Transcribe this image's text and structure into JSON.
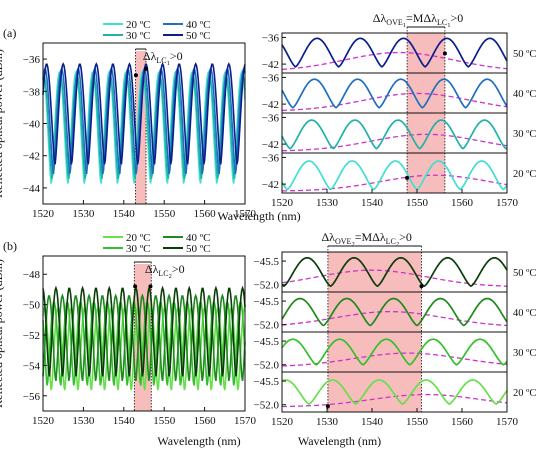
{
  "chart_data": [
    {
      "type": "line",
      "panel_label": "(a)",
      "xlabel": "",
      "ylabel": "Reflected optical power (dBm)",
      "xlim": [
        1520,
        1570
      ],
      "ylim": [
        -45,
        -35
      ],
      "xticks": [
        "1520",
        "1530",
        "1540",
        "1550",
        "1560",
        "1570"
      ],
      "yticks": [
        "-36",
        "-38",
        "-40",
        "-42",
        "-44"
      ],
      "legend": {
        "placement": "top",
        "columns": 2,
        "entries": [
          "20 ºC",
          "40 ºC",
          "30 ºC",
          "50 ºC"
        ]
      },
      "series": [
        {
          "name": "20 ºC",
          "color": "#40e0d0",
          "period_nm": 4.1,
          "peak_x": 1544.6,
          "min_db": -43.8,
          "max_db": -36.8
        },
        {
          "name": "30 ºC",
          "color": "#20b2aa",
          "period_nm": 4.1,
          "peak_x": 1544.8,
          "min_db": -43.5,
          "max_db": -37.0
        },
        {
          "name": "40 ºC",
          "color": "#1e6fc0",
          "period_nm": 4.1,
          "peak_x": 1545.1,
          "min_db": -43.2,
          "max_db": -36.6
        },
        {
          "name": "50 ºC",
          "color": "#0a1e8c",
          "period_nm": 4.1,
          "peak_x": 1545.5,
          "min_db": -42.6,
          "max_db": -36.3
        }
      ],
      "shaded_band": {
        "x": [
          1542.9,
          1545.5
        ],
        "color": "#f4a6a6"
      },
      "annotation": {
        "main": "Δλ",
        "sub": "LC",
        "subsub": "1",
        "suffix": ">0"
      },
      "marker_points": [
        {
          "x": 1543.0,
          "y": -37.0
        },
        {
          "x": 1545.5,
          "y": -36.6
        }
      ]
    },
    {
      "type": "line",
      "panel_label": "",
      "stacked": true,
      "xlabel": "",
      "ylabel": "",
      "xlim": [
        1520,
        1570
      ],
      "xticks": [
        "1520",
        "1530",
        "1540",
        "1550",
        "1560",
        "1570"
      ],
      "shaded_band": {
        "x": [
          1547.8,
          1556.2
        ],
        "color": "#f4a6a6"
      },
      "annotation": {
        "main": "Δλ",
        "sub": "OVE",
        "subsub": "1",
        "middle": "=MΔλ",
        "sub2": "LC",
        "subsub2": "1",
        "suffix": ">0"
      },
      "rows": [
        {
          "temp": "50 ºC",
          "color": "#0a1e8c",
          "yticks": [
            "-36",
            "-42"
          ],
          "ylim": [
            -44,
            -35
          ],
          "period_nm": 9.6,
          "peak_x": 1547.0,
          "min_db": -42.6,
          "max_db": -36.2,
          "env_peak_x": 1546.0,
          "env_max": -39.4,
          "env_min": -43.6,
          "marker": {
            "x": 1556.2,
            "y": -39.6
          }
        },
        {
          "temp": "40 ºC",
          "color": "#1e6fc0",
          "yticks": [
            "-36",
            "-42"
          ],
          "ylim": [
            -44,
            -35
          ],
          "period_nm": 9.6,
          "peak_x": 1546.4,
          "min_db": -42.8,
          "max_db": -36.4,
          "env_peak_x": 1550.0,
          "env_max": -39.6,
          "env_min": -43.6
        },
        {
          "temp": "30 ºC",
          "color": "#20b2aa",
          "yticks": [
            "-36",
            "-42"
          ],
          "ylim": [
            -44,
            -35
          ],
          "period_nm": 9.6,
          "peak_x": 1545.8,
          "min_db": -43.0,
          "max_db": -36.6,
          "env_peak_x": 1552.0,
          "env_max": -39.8,
          "env_min": -43.6
        },
        {
          "temp": "20 ºC",
          "color": "#40e0d0",
          "yticks": [
            "-36",
            "-42"
          ],
          "ylim": [
            -44,
            -35
          ],
          "period_nm": 9.6,
          "peak_x": 1545.2,
          "min_db": -43.2,
          "max_db": -36.8,
          "env_peak_x": 1554.0,
          "env_max": -40.0,
          "env_min": -43.6,
          "marker": {
            "x": 1547.8,
            "y": -40.6
          }
        }
      ]
    },
    {
      "type": "line",
      "panel_label": "(b)",
      "xlabel": "Wavelength (nm)",
      "ylabel": "Reflected optical power (dBm)",
      "xlim": [
        1520,
        1570
      ],
      "ylim": [
        -57,
        -46.8
      ],
      "xticks": [
        "1520",
        "1530",
        "1540",
        "1550",
        "1560",
        "1570"
      ],
      "yticks": [
        "-48",
        "-50",
        "-52",
        "-54",
        "-56"
      ],
      "legend": {
        "placement": "top",
        "columns": 2,
        "entries": [
          "20 ºC",
          "40 ºC",
          "30 ºC",
          "50 ºC"
        ]
      },
      "series": [
        {
          "name": "20 ºC",
          "color": "#66e04a",
          "period_nm": 3.3,
          "peak_x": 1546.8,
          "min_db": -55.7,
          "max_db": -50.2
        },
        {
          "name": "30 ºC",
          "color": "#33c12b",
          "period_nm": 3.3,
          "peak_x": 1545.8,
          "min_db": -55.4,
          "max_db": -49.8
        },
        {
          "name": "40 ºC",
          "color": "#1e8a1e",
          "period_nm": 3.3,
          "peak_x": 1544.6,
          "min_db": -55.1,
          "max_db": -49.4
        },
        {
          "name": "50 ºC",
          "color": "#0b3d0b",
          "period_nm": 3.3,
          "peak_x": 1543.0,
          "min_db": -54.8,
          "max_db": -48.9
        }
      ],
      "shaded_band": {
        "x": [
          1542.6,
          1546.8
        ],
        "color": "#f4a6a6"
      },
      "annotation": {
        "main": "Δλ",
        "sub": "LC",
        "subsub": "2",
        "suffix": ">0"
      },
      "marker_points": [
        {
          "x": 1542.8,
          "y": -48.8
        },
        {
          "x": 1546.6,
          "y": -48.8
        }
      ]
    },
    {
      "type": "line",
      "panel_label": "",
      "stacked": true,
      "xlabel": "Wavelength (nm)",
      "ylabel": "",
      "xlim": [
        1520,
        1570
      ],
      "xticks": [
        "1520",
        "1530",
        "1540",
        "1550",
        "1560",
        "1570"
      ],
      "shaded_band": {
        "x": [
          1530.2,
          1551.0
        ],
        "color": "#f4a6a6"
      },
      "annotation": {
        "main": "Δλ",
        "sub": "OVE",
        "subsub": "2",
        "middle": "=MΔλ",
        "sub2": "LC",
        "subsub2": "2",
        "suffix": ">0"
      },
      "rows": [
        {
          "temp": "50 ºC",
          "color": "#0b3d0b",
          "yticks": [
            "-45.5",
            "-52.0"
          ],
          "ylim": [
            -54,
            -43
          ],
          "period_nm": 10.4,
          "peak_x": 1525.6,
          "min_db": -52.4,
          "max_db": -44.6,
          "env_peak_x": 1540.0,
          "env_max": -48.0,
          "env_min": -52.6,
          "marker": {
            "x": 1551.0,
            "y": -52.4
          }
        },
        {
          "temp": "40 ºC",
          "color": "#1e8a1e",
          "yticks": [
            "-45.5",
            "-52.0"
          ],
          "ylim": [
            -54,
            -43
          ],
          "period_nm": 10.4,
          "peak_x": 1524.0,
          "min_db": -52.2,
          "max_db": -44.8,
          "env_peak_x": 1544.0,
          "env_max": -48.4,
          "env_min": -52.6
        },
        {
          "temp": "30 ºC",
          "color": "#33c12b",
          "yticks": [
            "-45.5",
            "-52.0"
          ],
          "ylim": [
            -54,
            -43
          ],
          "period_nm": 10.4,
          "peak_x": 1522.4,
          "min_db": -52.0,
          "max_db": -45.0,
          "env_peak_x": 1548.0,
          "env_max": -48.8,
          "env_min": -52.6
        },
        {
          "temp": "20 ºC",
          "color": "#66e04a",
          "yticks": [
            "-45.5",
            "-52.0"
          ],
          "ylim": [
            -54,
            -43
          ],
          "period_nm": 10.4,
          "peak_x": 1520.8,
          "min_db": -51.8,
          "max_db": -45.2,
          "env_peak_x": 1552.0,
          "env_max": -49.2,
          "env_min": -52.6,
          "marker": {
            "x": 1530.2,
            "y": -52.4
          }
        }
      ]
    }
  ]
}
